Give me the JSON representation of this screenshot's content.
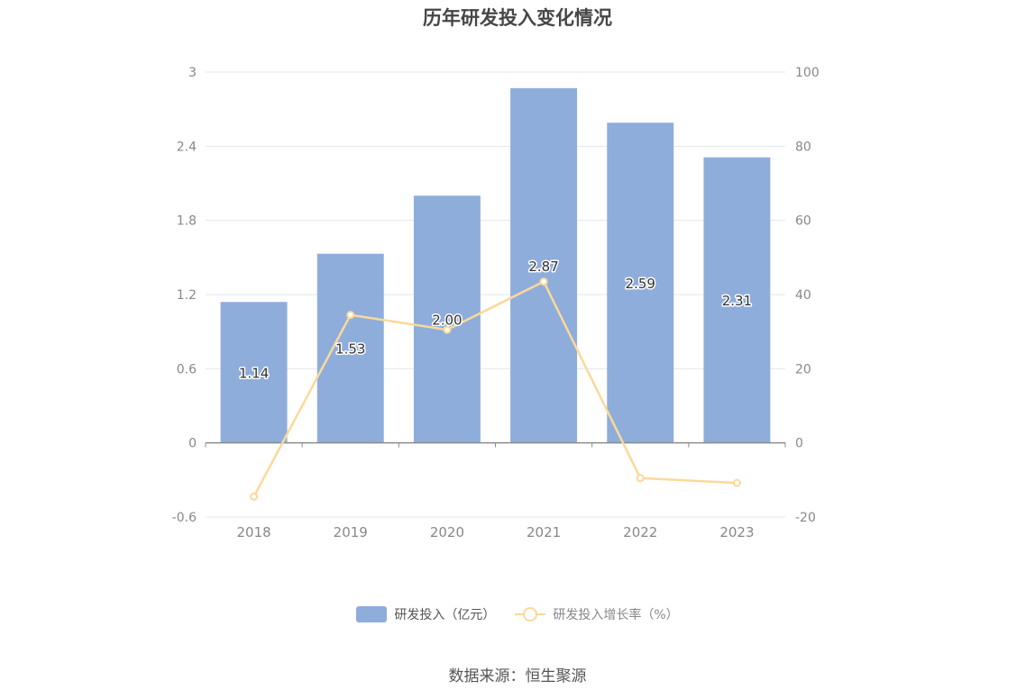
{
  "chart_data": {
    "type": "bar",
    "title": "历年研发投入变化情况",
    "categories": [
      "2018",
      "2019",
      "2020",
      "2021",
      "2022",
      "2023"
    ],
    "series": [
      {
        "name": "研发投入（亿元）",
        "type": "bar",
        "axis": "left",
        "values": [
          1.14,
          1.53,
          2.0,
          2.87,
          2.59,
          2.31
        ],
        "labels": [
          "1.14",
          "1.53",
          "2.00",
          "2.87",
          "2.59",
          "2.31"
        ],
        "color": "#8eaddb"
      },
      {
        "name": "研发投入增长率（%）",
        "type": "line",
        "axis": "right",
        "values": [
          -14.5,
          34.5,
          30.5,
          43.5,
          -9.5,
          -10.8
        ],
        "color": "#fcd89a"
      }
    ],
    "y_left": {
      "ylim": [
        -0.6,
        3
      ],
      "ticks": [
        "3",
        "2.4",
        "1.8",
        "1.2",
        "0.6",
        "0",
        "-0.6"
      ]
    },
    "y_right": {
      "ylim": [
        -20,
        100
      ],
      "ticks": [
        "100",
        "80",
        "60",
        "40",
        "20",
        "0",
        "-20"
      ]
    },
    "grid": true,
    "legend_position": "bottom"
  },
  "source": "数据来源：恒生聚源"
}
